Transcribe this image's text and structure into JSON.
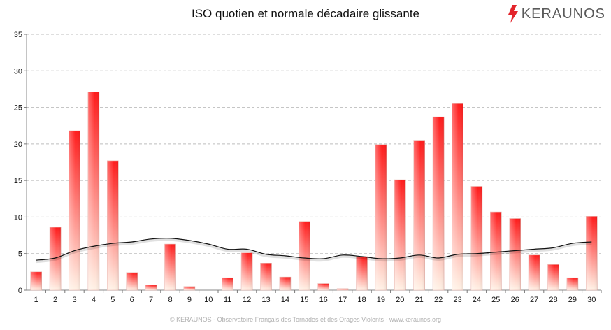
{
  "title": "ISO quotien et normale décadaire glissante",
  "brand": {
    "name": "KERAUNOS",
    "icon": "lightning-bolt-icon",
    "icon_color": "#e3242b"
  },
  "footer": "© KERAUNOS - Observatoire Français des Tornades et des Orages Violents - www.keraunos.org",
  "chart_data": {
    "type": "bar",
    "categories": [
      "1",
      "2",
      "3",
      "4",
      "5",
      "6",
      "7",
      "8",
      "9",
      "10",
      "11",
      "12",
      "13",
      "14",
      "15",
      "16",
      "17",
      "18",
      "19",
      "20",
      "21",
      "22",
      "23",
      "24",
      "25",
      "26",
      "27",
      "28",
      "29",
      "30"
    ],
    "series": [
      {
        "type": "bar",
        "values": [
          2.5,
          8.6,
          21.8,
          27.1,
          17.7,
          2.4,
          0.7,
          6.3,
          0.5,
          0.0,
          1.7,
          5.1,
          3.7,
          1.8,
          9.4,
          0.9,
          0.2,
          4.6,
          19.9,
          15.1,
          20.5,
          23.7,
          25.5,
          14.2,
          10.7,
          9.8,
          4.8,
          3.5,
          1.7,
          10.1
        ],
        "color_top": "#ff1a1a",
        "color_bottom": "#fff2e6"
      },
      {
        "type": "line",
        "values": [
          4.1,
          4.4,
          5.4,
          6.0,
          6.4,
          6.6,
          7.0,
          7.1,
          6.8,
          6.3,
          5.6,
          5.6,
          4.9,
          4.7,
          4.4,
          4.3,
          4.8,
          4.6,
          4.3,
          4.4,
          4.8,
          4.4,
          4.9,
          5.0,
          5.2,
          5.4,
          5.6,
          5.8,
          6.4,
          6.6
        ],
        "color": "#111111"
      }
    ],
    "ylim": [
      0,
      35
    ],
    "yticks": [
      0,
      5,
      10,
      15,
      20,
      25,
      30,
      35
    ],
    "grid": true,
    "legend": "none"
  }
}
